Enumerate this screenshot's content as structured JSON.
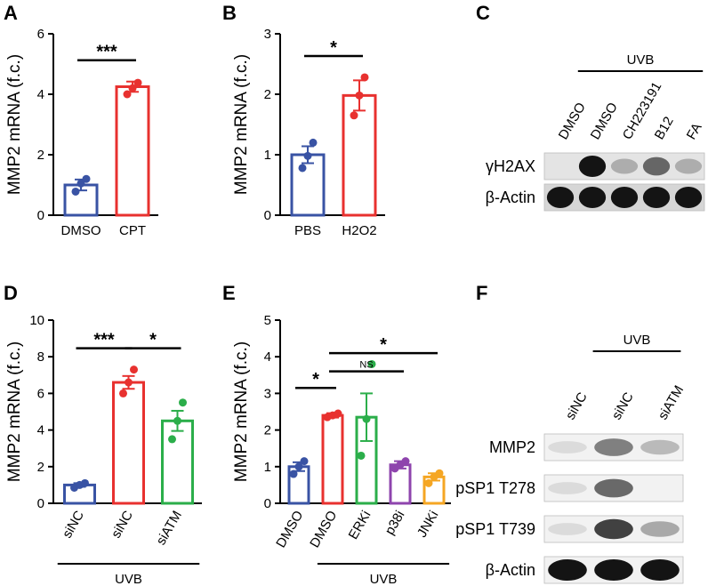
{
  "chart_data": [
    {
      "panel": "A",
      "type": "bar",
      "ylabel": "MMP2 mRNA (f.c.)",
      "ylim": [
        0,
        6
      ],
      "yticks": [
        0,
        2,
        4,
        6
      ],
      "categories": [
        "DMSO",
        "CPT"
      ],
      "values": [
        1.0,
        4.25
      ],
      "errors": [
        0.18,
        0.17
      ],
      "points": [
        [
          0.78,
          1.05,
          1.2
        ],
        [
          4.0,
          4.2,
          4.38
        ]
      ],
      "colors": [
        "#3953a4",
        "#e8312f"
      ],
      "significance": [
        {
          "from": 0,
          "to": 1,
          "label": "***"
        }
      ],
      "uvb": null
    },
    {
      "panel": "B",
      "type": "bar",
      "ylabel": "MMP2 mRNA (f.c.)",
      "ylim": [
        0,
        3
      ],
      "yticks": [
        0,
        1,
        2,
        3
      ],
      "categories": [
        "PBS",
        "H2O2"
      ],
      "values": [
        1.0,
        1.98
      ],
      "errors": [
        0.14,
        0.25
      ],
      "points": [
        [
          0.78,
          0.98,
          1.2
        ],
        [
          1.65,
          1.98,
          2.28
        ]
      ],
      "colors": [
        "#3953a4",
        "#e8312f"
      ],
      "significance": [
        {
          "from": 0,
          "to": 1,
          "label": "*"
        }
      ],
      "uvb": null
    },
    {
      "panel": "D",
      "type": "bar",
      "ylabel": "MMP2 mRNA (f.c.)",
      "ylim": [
        0,
        10
      ],
      "yticks": [
        0,
        2,
        4,
        6,
        8,
        10
      ],
      "categories": [
        "siNC",
        "siNC",
        "siATM"
      ],
      "values": [
        1.0,
        6.6,
        4.5
      ],
      "errors": [
        0.1,
        0.35,
        0.55
      ],
      "points": [
        [
          0.85,
          1.0,
          1.1
        ],
        [
          6.0,
          6.6,
          7.3
        ],
        [
          3.5,
          4.5,
          5.5
        ]
      ],
      "colors": [
        "#3953a4",
        "#e8312f",
        "#2bae4a"
      ],
      "significance": [
        {
          "from": 0,
          "to": 1,
          "label": "***"
        },
        {
          "from": 1,
          "to": 2,
          "label": "*"
        }
      ],
      "uvb": {
        "label": "UVB",
        "from": 0,
        "to": 2
      }
    },
    {
      "panel": "E",
      "type": "bar",
      "ylabel": "MMP2 mRNA (f.c.)",
      "ylim": [
        0,
        5
      ],
      "yticks": [
        0,
        1,
        2,
        3,
        4,
        5
      ],
      "categories": [
        "DMSO",
        "DMSO",
        "ERKi",
        "p38i",
        "JNKi"
      ],
      "values": [
        1.0,
        2.4,
        2.35,
        1.05,
        0.72
      ],
      "errors": [
        0.12,
        0.06,
        0.65,
        0.1,
        0.1
      ],
      "points": [
        [
          0.8,
          1.0,
          1.15
        ],
        [
          2.35,
          2.4,
          2.45
        ],
        [
          1.3,
          2.3,
          3.8
        ],
        [
          0.95,
          1.05,
          1.15
        ],
        [
          0.55,
          0.72,
          0.82
        ]
      ],
      "colors": [
        "#3953a4",
        "#e8312f",
        "#2bae4a",
        "#8e44ad",
        "#f5a623"
      ],
      "significance": [
        {
          "from": 0,
          "to": 1,
          "label": "*"
        },
        {
          "from": 1,
          "to": 3,
          "label": "NS"
        },
        {
          "from": 1,
          "to": 4,
          "label": "*"
        }
      ],
      "uvb": {
        "label": "UVB",
        "from": 1,
        "to": 4
      }
    }
  ],
  "blots": {
    "C": {
      "letter": "C",
      "uvb_label": "UVB",
      "lanes": [
        "DMSO",
        "DMSO",
        "CH223191",
        "B12",
        "FA"
      ],
      "rows": [
        {
          "label": "γH2AX",
          "intensities": [
            0.0,
            1.0,
            0.35,
            0.7,
            0.35
          ]
        },
        {
          "label": "β-Actin",
          "intensities": [
            1.0,
            1.0,
            1.0,
            1.0,
            1.0
          ]
        }
      ]
    },
    "F": {
      "letter": "F",
      "uvb_label": "UVB",
      "lanes": [
        "siNC",
        "siNC",
        "siATM"
      ],
      "rows": [
        {
          "label": "MMP2",
          "intensities": [
            0.05,
            0.6,
            0.3
          ]
        },
        {
          "label": "pSP1 T278",
          "intensities": [
            0.05,
            0.7,
            0.0
          ]
        },
        {
          "label": "pSP1 T739",
          "intensities": [
            0.05,
            0.85,
            0.4
          ]
        },
        {
          "label": "β-Actin",
          "intensities": [
            1.0,
            1.0,
            1.0
          ]
        }
      ]
    }
  },
  "panel_letters": [
    "A",
    "B",
    "C",
    "D",
    "E",
    "F"
  ]
}
